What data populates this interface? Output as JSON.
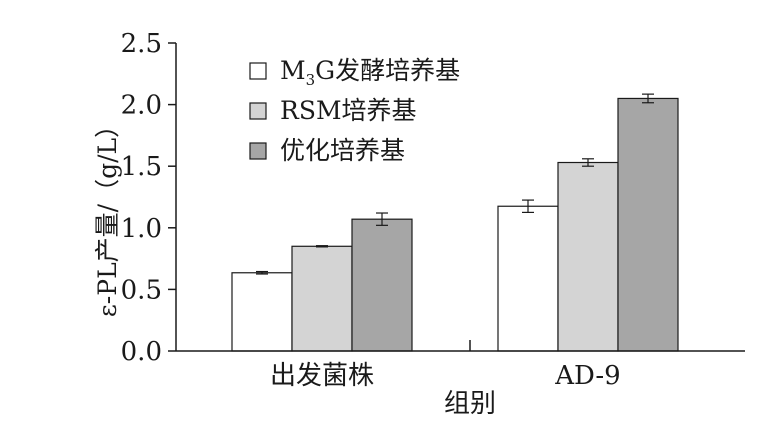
{
  "chart_data": {
    "type": "bar",
    "categories": [
      "出发菌株",
      "AD-9"
    ],
    "series": [
      {
        "name_parts": [
          "M",
          "3",
          "G发酵培养基"
        ],
        "color": "#ffffff",
        "values": [
          0.635,
          1.175
        ],
        "errors": [
          0.01,
          0.05
        ]
      },
      {
        "name": "RSM培养基",
        "color": "#d4d4d4",
        "values": [
          0.85,
          1.53
        ],
        "errors": [
          0.005,
          0.03
        ]
      },
      {
        "name": "优化培养基",
        "color": "#a6a6a6",
        "values": [
          1.07,
          2.05
        ],
        "errors": [
          0.05,
          0.035
        ]
      }
    ],
    "ylim": [
      0,
      2.5
    ],
    "yticks": [
      "0.0",
      "0.5",
      "1.0",
      "1.5",
      "2.0",
      "2.5"
    ],
    "ylabel": "ε-PL产量/（g/L）",
    "xlabel": "组别",
    "legend_position": "top-left",
    "grid": false
  }
}
